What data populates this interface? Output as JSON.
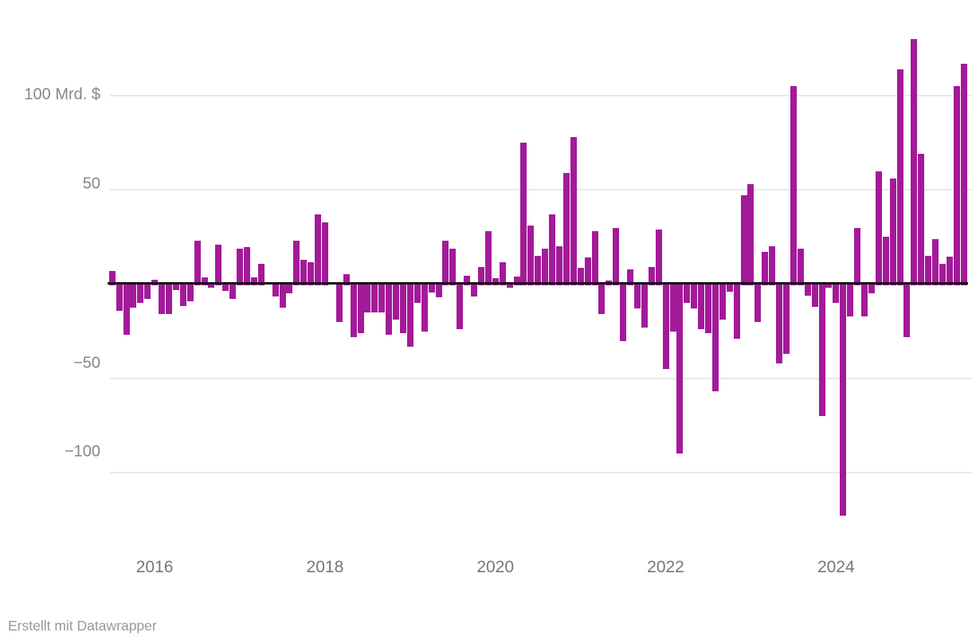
{
  "footer": {
    "text": "Erstellt mit Datawrapper"
  },
  "chart_data": {
    "type": "bar",
    "title": "",
    "xlabel": "",
    "ylabel": "Mrd. $",
    "unit": "Mrd. $",
    "start_month": "2015-07",
    "frequency": "monthly",
    "values": [
      7,
      -14,
      -27,
      -12.5,
      -10,
      -8,
      2.5,
      -16,
      -16,
      -3,
      -11.5,
      -9,
      23,
      3.5,
      -2,
      21,
      -3.5,
      -8,
      19,
      19.5,
      3.5,
      11,
      0,
      -6.5,
      -12.5,
      -5,
      23,
      13,
      11.5,
      37,
      33,
      0,
      -20,
      5.5,
      -28,
      -26,
      -15,
      -15,
      -15,
      -27,
      -19,
      -26,
      -33,
      -10,
      -25,
      -4.5,
      -7,
      23,
      19,
      -24,
      4.5,
      -6.5,
      9,
      28,
      3,
      11.5,
      -2,
      4,
      75,
      31,
      15,
      19,
      37,
      20,
      59,
      78,
      8.5,
      14,
      28,
      -16,
      2,
      30,
      -30,
      8,
      -13,
      -23,
      9,
      29,
      -45,
      -25,
      -90,
      -10,
      -13,
      -24,
      -26,
      -57,
      -19,
      -4,
      -29,
      47,
      53,
      -20,
      17,
      20,
      -42,
      -37,
      105,
      19,
      -6,
      -12,
      -70,
      -2,
      -10,
      -123,
      -17,
      30,
      -17,
      -5,
      60,
      25,
      56,
      114,
      -28,
      130,
      69,
      15,
      24,
      11,
      14.5,
      105,
      117
    ],
    "y_ticks": [
      {
        "label": "100 Mrd. $",
        "value": 100
      },
      {
        "label": "50",
        "value": 50
      },
      {
        "label": "−50",
        "value": -50
      },
      {
        "label": "−100",
        "value": -100
      }
    ],
    "x_ticks": [
      {
        "label": "2016",
        "month_index": 6
      },
      {
        "label": "2018",
        "month_index": 30
      },
      {
        "label": "2020",
        "month_index": 54
      },
      {
        "label": "2022",
        "month_index": 78
      },
      {
        "label": "2024",
        "month_index": 102
      }
    ],
    "ylim": [
      -130,
      135
    ],
    "grid": true,
    "legend": false,
    "bar_color": "#a31a99",
    "axis_color": "#141414",
    "grid_color": "#e9e9e9",
    "label_color": "#868686"
  }
}
